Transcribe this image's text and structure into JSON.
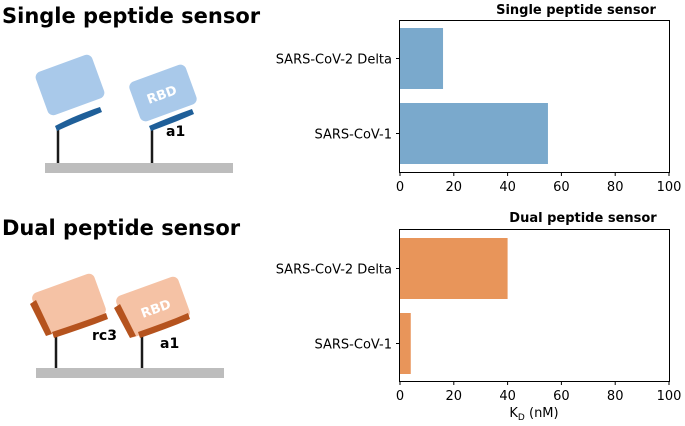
{
  "panels": {
    "top": {
      "heading": "Single peptide sensor",
      "peptide_labels": [
        "a1"
      ],
      "domain_label": "RBD"
    },
    "bottom": {
      "heading": "Dual peptide sensor",
      "peptide_labels": [
        "rc3",
        "a1"
      ],
      "domain_label": "RBD"
    }
  },
  "chart_data": [
    {
      "type": "bar",
      "orientation": "horizontal",
      "title": "Single peptide sensor",
      "categories": [
        "SARS-CoV-2 Delta",
        "SARS-CoV-1"
      ],
      "values": [
        16,
        55
      ],
      "xlim": [
        0,
        100
      ],
      "xticks": [
        "0",
        "20",
        "40",
        "60",
        "80",
        "100"
      ],
      "xlabel": "",
      "color": "#7aa9cc"
    },
    {
      "type": "bar",
      "orientation": "horizontal",
      "title": "Dual peptide sensor",
      "categories": [
        "SARS-CoV-2 Delta",
        "SARS-CoV-1"
      ],
      "values": [
        40,
        4
      ],
      "xlim": [
        0,
        100
      ],
      "xticks": [
        "0",
        "20",
        "40",
        "60",
        "80",
        "100"
      ],
      "xlabel_main": "K",
      "xlabel_sub": "D",
      "xlabel_unit": " (nM)",
      "color": "#e8955a"
    }
  ],
  "colors": {
    "rbd_blue": "#a9c9ea",
    "peptide_blue": "#1f5f99",
    "rbd_orange": "#f5c2a5",
    "peptide_orange": "#b5531e",
    "surface": "#bdbdbd"
  }
}
